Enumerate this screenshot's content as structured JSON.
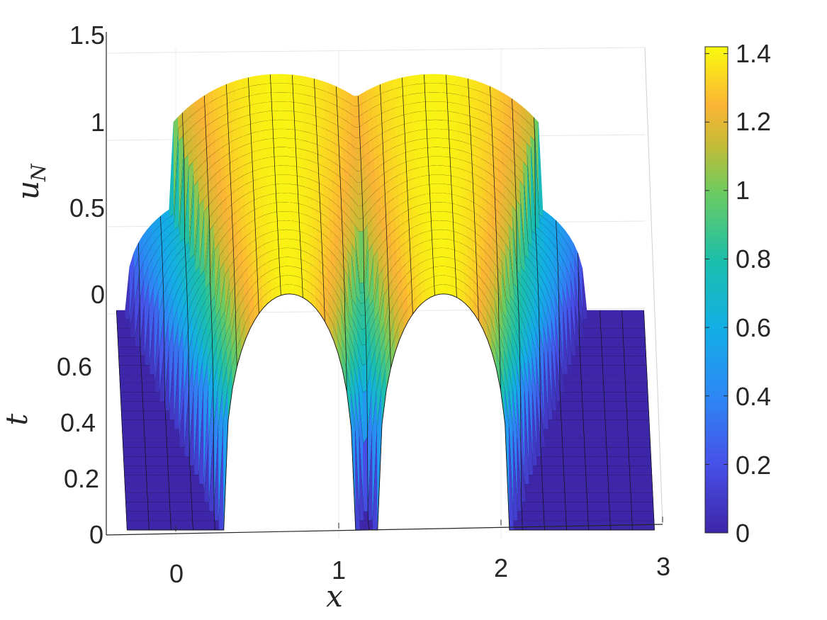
{
  "chart_data": {
    "type": "surface",
    "colormap": "parula",
    "description_of_surface": "two hump ridges in u over x and t",
    "xlabel": "x",
    "ylabel": "t",
    "zlabel_main": "u",
    "zlabel_sub": "N",
    "x_ticks": [
      "0",
      "1",
      "2",
      "3"
    ],
    "t_ticks": [
      "0",
      "0.2",
      "0.4",
      "0.6"
    ],
    "z_ticks": [
      "0",
      "0.5",
      "1",
      "1.5"
    ],
    "colorbar_ticks": [
      "0",
      "0.2",
      "0.4",
      "0.6",
      "0.8",
      "1",
      "1.2",
      "1.4"
    ],
    "xlim": [
      -0.3,
      3
    ],
    "tlim": [
      0,
      0.6
    ],
    "zlim": [
      0,
      1.5
    ],
    "clim": [
      0,
      1.42
    ],
    "initial_condition": {
      "left_hump": {
        "center": 0.7,
        "halfwidth": 0.4,
        "peak": 1.4
      },
      "right_hump": {
        "center": 1.65,
        "halfwidth": 0.4,
        "peak": 1.4
      }
    },
    "grid": true
  }
}
